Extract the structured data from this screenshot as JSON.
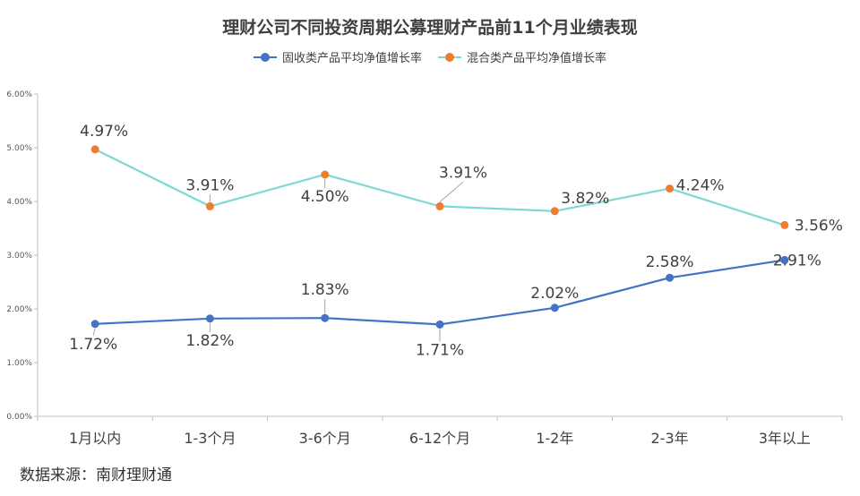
{
  "chart_data": {
    "type": "line",
    "title": "理财公司不同投资周期公募理财产品前11个月业绩表现",
    "categories": [
      "1月以内",
      "1-3个月",
      "3-6个月",
      "6-12个月",
      "1-2年",
      "2-3年",
      "3年以上"
    ],
    "series": [
      {
        "name": "固收类产品平均净值增长率",
        "values": [
          1.72,
          1.82,
          1.83,
          1.71,
          2.02,
          2.58,
          2.91
        ],
        "labels": [
          "1.72%",
          "1.82%",
          "1.83%",
          "1.71%",
          "2.02%",
          "2.58%",
          "2.91%"
        ],
        "line_color": "#4472C4",
        "marker_color": "#4472C4"
      },
      {
        "name": "混合类产品平均净值增长率",
        "values": [
          4.97,
          3.91,
          4.5,
          3.91,
          3.82,
          4.24,
          3.56
        ],
        "labels": [
          "4.97%",
          "3.91%",
          "4.50%",
          "3.91%",
          "3.82%",
          "4.24%",
          "3.56%"
        ],
        "line_color": "#7FD8D4",
        "marker_color": "#ED7D31"
      }
    ],
    "ylim": [
      0,
      6
    ],
    "y_ticks": [
      "0.00%",
      "1.00%",
      "2.00%",
      "3.00%",
      "4.00%",
      "5.00%",
      "6.00%"
    ],
    "legend_position": "top",
    "grid": false
  },
  "source": "数据来源：南财理财通"
}
